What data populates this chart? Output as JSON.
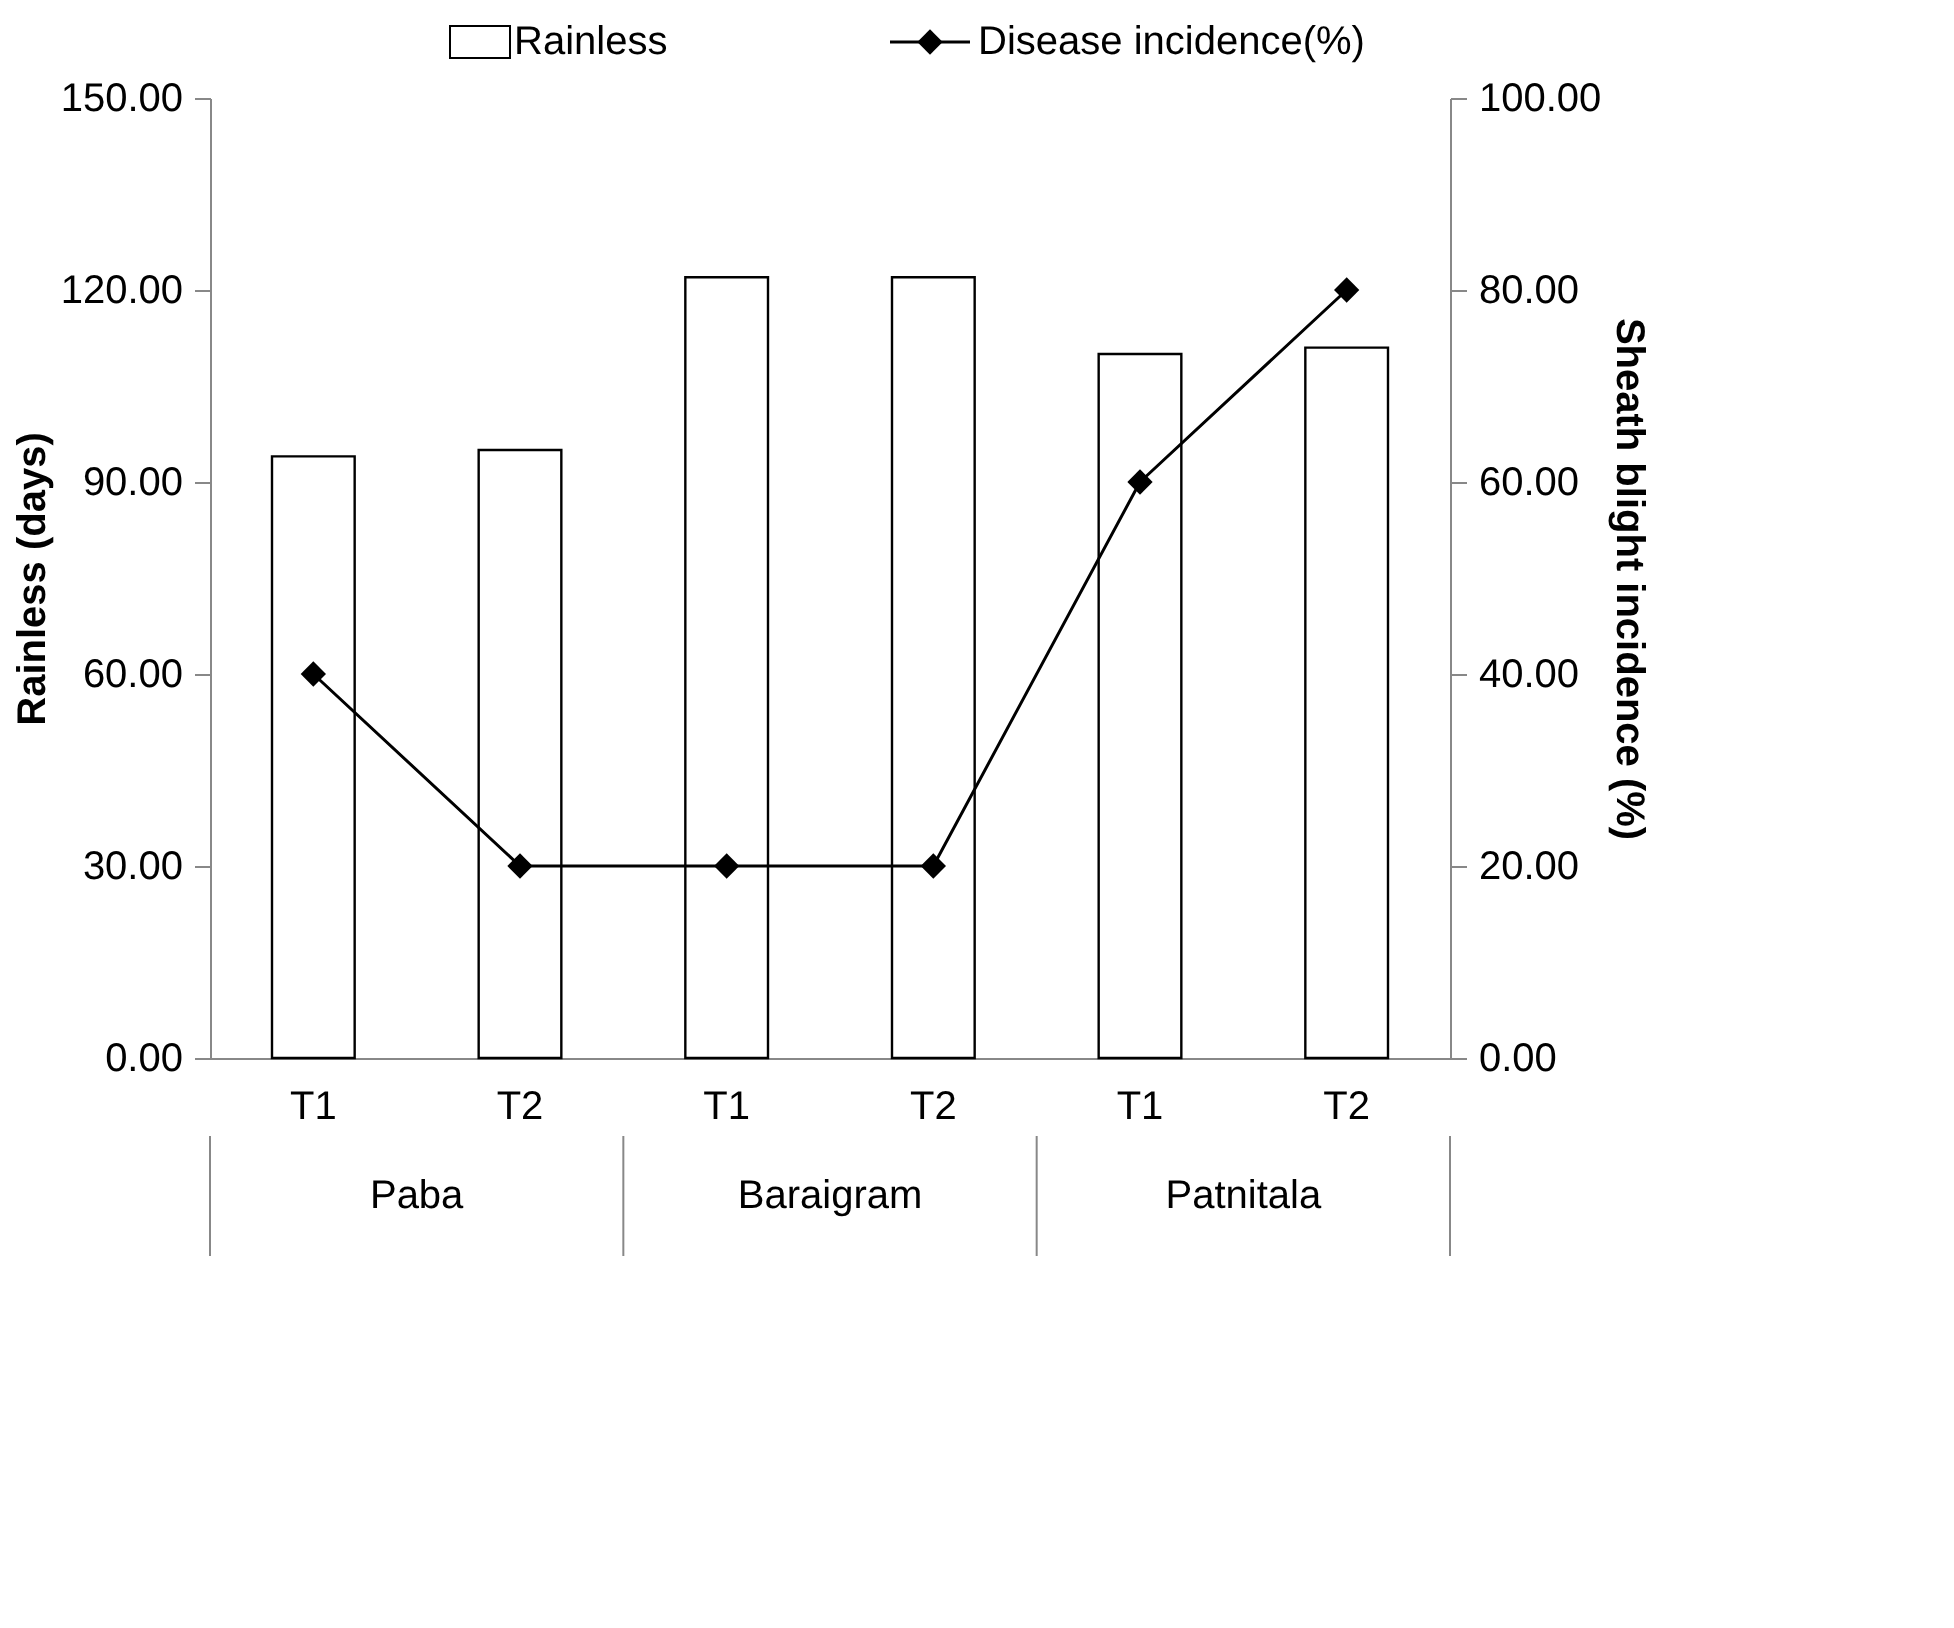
{
  "chart_data": {
    "type": "bar",
    "categories": [
      "T1",
      "T2",
      "T1",
      "T2",
      "T1",
      "T2"
    ],
    "annotations": [
      "Paba",
      "Baraigram",
      "Patnitala"
    ],
    "ylabel": "Rainless (days)",
    "y2label": "Sheath blight incidence (%)",
    "series": [
      {
        "name": "Rainless",
        "color": "#ffffff",
        "values": [
          94,
          95,
          122,
          122,
          110,
          111
        ]
      },
      {
        "name": "Disease incidence(%)",
        "type": "line",
        "axis": "y2",
        "color": "#000000",
        "values": [
          40,
          20,
          20,
          20,
          60,
          80
        ]
      }
    ],
    "marker": "diamond",
    "legend": "top",
    "grid": false,
    "ylim": [
      0,
      150
    ],
    "yticks": [
      {
        "value": 0,
        "label": "0.00"
      },
      {
        "value": 30,
        "label": "30.00"
      },
      {
        "value": 60,
        "label": "60.00"
      },
      {
        "value": 90,
        "label": "90.00"
      },
      {
        "value": 120,
        "label": "120.00"
      },
      {
        "value": 150,
        "label": "150.00"
      }
    ],
    "y2lim": [
      0,
      100
    ],
    "y2ticks": [
      {
        "value": 0,
        "label": "0.00"
      },
      {
        "value": 20,
        "label": "20.00"
      },
      {
        "value": 40,
        "label": "40.00"
      },
      {
        "value": 60,
        "label": "60.00"
      },
      {
        "value": 80,
        "label": "80.00"
      },
      {
        "value": 100,
        "label": "100.00"
      }
    ]
  }
}
